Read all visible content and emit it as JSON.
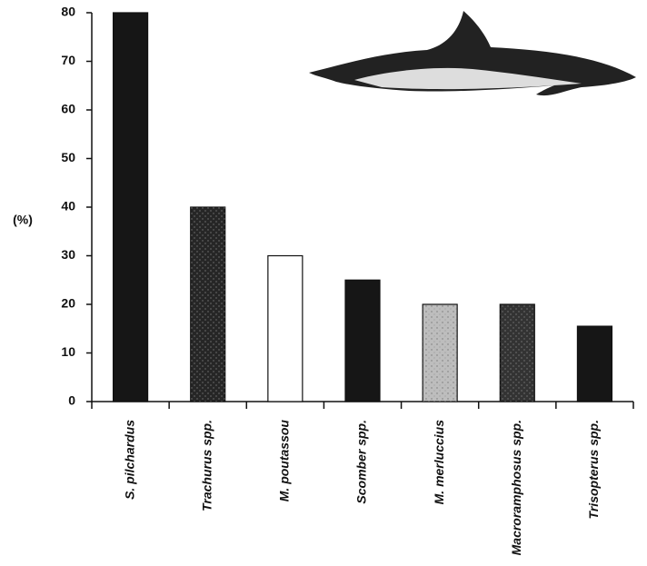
{
  "chart_data": {
    "type": "bar",
    "y_label": "(%)",
    "categories": [
      "S. pilchardus",
      "Trachurus spp.",
      "M. poutassou",
      "Scomber spp.",
      "M. merluccius",
      "Macroramphosus spp.",
      "Trisopterus spp."
    ],
    "values": [
      80,
      40,
      30,
      25,
      20,
      20,
      15.5
    ],
    "colors": [
      "#161616",
      "#262626",
      "#ffffff",
      "#161616",
      "#bdbdbd",
      "#333333",
      "#161616"
    ],
    "ylim": [
      0,
      80
    ],
    "yticks": [
      0,
      10,
      20,
      30,
      40,
      50,
      60,
      70,
      80
    ],
    "grid": false
  }
}
